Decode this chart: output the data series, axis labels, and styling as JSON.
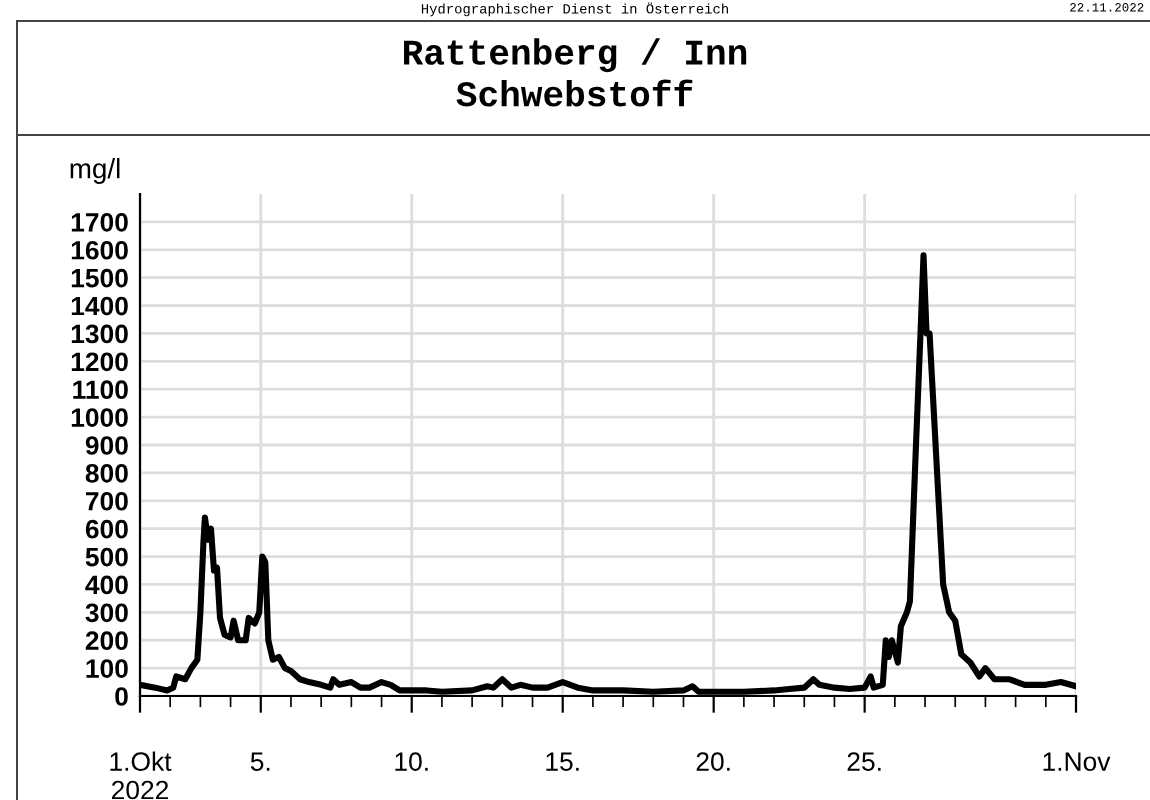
{
  "chart_data": {
    "type": "line",
    "title": "Rattenberg / Inn\nSchwebstoff",
    "ylabel": "mg/l",
    "annotations": [
      "Hydrographischer Dienst in Österreich",
      "22.11.2022"
    ],
    "x": [
      "2022-10-01T00:00",
      "2022-10-01T12:00",
      "2022-10-01T21:36",
      "2022-10-02T02:24",
      "2022-10-02T04:48",
      "2022-10-02T12:00",
      "2022-10-02T16:48",
      "2022-10-02T21:36",
      "2022-10-03T00:00",
      "2022-10-03T02:24",
      "2022-10-03T03:36",
      "2022-10-03T06:00",
      "2022-10-03T08:24",
      "2022-10-03T10:48",
      "2022-10-03T13:12",
      "2022-10-03T15:36",
      "2022-10-03T19:12",
      "2022-10-04T00:00",
      "2022-10-04T02:24",
      "2022-10-04T06:00",
      "2022-10-04T12:00",
      "2022-10-04T14:24",
      "2022-10-04T19:12",
      "2022-10-04T22:48",
      "2022-10-05T01:12",
      "2022-10-05T03:36",
      "2022-10-05T06:00",
      "2022-10-05T09:36",
      "2022-10-05T14:24",
      "2022-10-05T19:12",
      "2022-10-06T00:00",
      "2022-10-06T07:12",
      "2022-10-06T14:24",
      "2022-10-07T00:00",
      "2022-10-07T07:12",
      "2022-10-07T09:36",
      "2022-10-07T14:24",
      "2022-10-08T00:00",
      "2022-10-08T07:12",
      "2022-10-08T14:24",
      "2022-10-09T00:00",
      "2022-10-09T07:12",
      "2022-10-09T14:24",
      "2022-10-10T12:00",
      "2022-10-11T00:00",
      "2022-10-12T00:00",
      "2022-10-12T12:00",
      "2022-10-12T16:48",
      "2022-10-13T00:00",
      "2022-10-13T07:12",
      "2022-10-13T14:24",
      "2022-10-14T00:00",
      "2022-10-14T12:00",
      "2022-10-15T00:00",
      "2022-10-15T12:00",
      "2022-10-16T00:00",
      "2022-10-17T00:00",
      "2022-10-18T00:00",
      "2022-10-19T00:00",
      "2022-10-19T07:12",
      "2022-10-19T12:00",
      "2022-10-20T00:00",
      "2022-10-21T00:00",
      "2022-10-22T00:00",
      "2022-10-22T12:00",
      "2022-10-23T00:00",
      "2022-10-23T07:12",
      "2022-10-23T12:00",
      "2022-10-24T00:00",
      "2022-10-24T12:00",
      "2022-10-25T00:00",
      "2022-10-25T04:48",
      "2022-10-25T07:12",
      "2022-10-25T14:24",
      "2022-10-25T16:48",
      "2022-10-25T19:12",
      "2022-10-25T21:36",
      "2022-10-26T02:24",
      "2022-10-26T04:48",
      "2022-10-26T09:36",
      "2022-10-26T12:00",
      "2022-10-26T16:48",
      "2022-10-26T20:24",
      "2022-10-26T22:48",
      "2022-10-27T01:12",
      "2022-10-27T03:36",
      "2022-10-27T09:36",
      "2022-10-27T14:24",
      "2022-10-27T19:12",
      "2022-10-28T00:00",
      "2022-10-28T04:48",
      "2022-10-28T12:00",
      "2022-10-28T19:12",
      "2022-10-29T00:00",
      "2022-10-29T07:12",
      "2022-10-29T19:12",
      "2022-10-30T07:12",
      "2022-10-31T00:00",
      "2022-10-31T12:00",
      "2022-11-01T00:00"
    ],
    "series": [
      {
        "color": "#000000",
        "values": [
          40,
          30,
          20,
          30,
          70,
          60,
          100,
          130,
          300,
          550,
          640,
          560,
          600,
          450,
          460,
          280,
          220,
          210,
          270,
          200,
          200,
          280,
          260,
          300,
          500,
          480,
          200,
          130,
          140,
          100,
          90,
          60,
          50,
          40,
          30,
          60,
          40,
          50,
          30,
          30,
          50,
          40,
          20,
          20,
          15,
          20,
          35,
          30,
          60,
          30,
          40,
          30,
          30,
          50,
          30,
          20,
          20,
          15,
          20,
          35,
          15,
          15,
          15,
          20,
          25,
          30,
          60,
          40,
          30,
          25,
          30,
          70,
          30,
          40,
          200,
          140,
          200,
          120,
          250,
          300,
          340,
          900,
          1300,
          1580,
          1300,
          1300,
          800,
          400,
          300,
          270,
          150,
          120,
          70,
          100,
          60,
          60,
          40,
          40,
          50,
          35
        ]
      }
    ],
    "xlim": [
      "2022-10-01",
      "2022-11-01"
    ],
    "xticks": [
      {
        "value": "2022-10-01",
        "label": "1.Okt\n2022"
      },
      {
        "value": "2022-10-05",
        "label": "5."
      },
      {
        "value": "2022-10-10",
        "label": "10."
      },
      {
        "value": "2022-10-15",
        "label": "15."
      },
      {
        "value": "2022-10-20",
        "label": "20."
      },
      {
        "value": "2022-10-25",
        "label": "25."
      },
      {
        "value": "2022-11-01",
        "label": "1.Nov"
      }
    ],
    "ylim": [
      0,
      1800
    ],
    "yticks": [
      0,
      100,
      200,
      300,
      400,
      500,
      600,
      700,
      800,
      900,
      1000,
      1100,
      1200,
      1300,
      1400,
      1500,
      1600,
      1700
    ],
    "grid": true,
    "line_style": "solid",
    "marker": "none"
  }
}
